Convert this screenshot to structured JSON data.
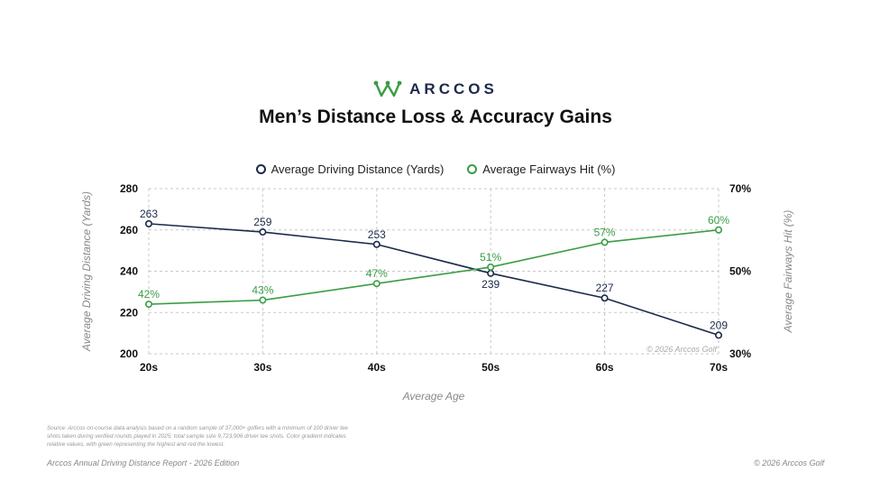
{
  "brand": {
    "name": "ARCCOS"
  },
  "title": "Men’s Distance Loss & Accuracy Gains",
  "chart_data": {
    "type": "line",
    "categories": [
      "20s",
      "30s",
      "40s",
      "50s",
      "60s",
      "70s"
    ],
    "series": [
      {
        "name": "Average Driving Distance (Yards)",
        "axis": "left",
        "color": "#1b2a4a",
        "values": [
          263,
          259,
          253,
          239,
          227,
          209
        ],
        "labels": [
          "263",
          "259",
          "253",
          "239",
          "227",
          "209"
        ]
      },
      {
        "name": "Average Fairways Hit (%)",
        "axis": "right",
        "color": "#3a9d45",
        "values": [
          42,
          43,
          47,
          51,
          57,
          60
        ],
        "labels": [
          "42%",
          "43%",
          "47%",
          "51%",
          "57%",
          "60%"
        ]
      }
    ],
    "xlabel": "Average Age",
    "ylabel_left": "Average Driving Distance (Yards)",
    "ylabel_right": "Average Fairways Hit (%)",
    "ylim_left": [
      200,
      280
    ],
    "yticks_left": [
      "200",
      "220",
      "240",
      "260",
      "280"
    ],
    "ylim_right": [
      30,
      70
    ],
    "yticks_right": [
      "30%",
      "50%",
      "70%"
    ],
    "grid": true,
    "legend_position": "top-center",
    "watermark": "© 2026 Arccos Golf"
  },
  "source_note": "Source: Arccos on-course data analysis based on a random sample of 37,000+ golfers with a minimum of 100 driver tee shots taken during verified rounds played in 2025; total sample size 9,723,906 driver tee shots. Color gradient indicates relative values, with green representing the highest and red the lowest.",
  "footer": {
    "left": "Arccos Annual Driving Distance Report - 2026 Edition",
    "right": "© 2026 Arccos Golf"
  }
}
